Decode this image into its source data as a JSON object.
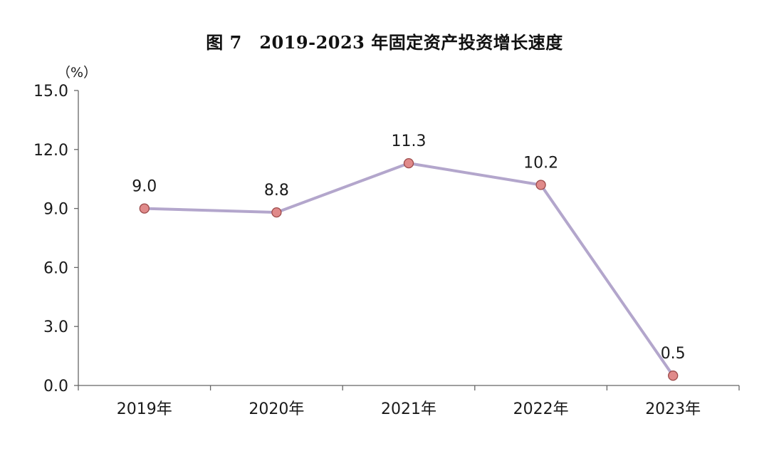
{
  "chart_data": {
    "type": "line",
    "title": "图 7　2019-2023 年固定资产投资增长速度",
    "ylabel": "（%）",
    "xlabel": "",
    "categories": [
      "2019年",
      "2020年",
      "2021年",
      "2022年",
      "2023年"
    ],
    "series": [
      {
        "values": [
          9.0,
          8.8,
          11.3,
          10.2,
          0.5
        ]
      }
    ],
    "data_labels": [
      "9.0",
      "8.8",
      "11.3",
      "10.2",
      "0.5"
    ],
    "ylim": [
      0,
      15
    ],
    "yticks": [
      0,
      3,
      6,
      9,
      12,
      15
    ],
    "ytick_labels": [
      "0.0",
      "3.0",
      "6.0",
      "9.0",
      "12.0",
      "15.0"
    ],
    "grid": false,
    "legend": "none",
    "line_color": "#b3a6cc",
    "marker_fill": "#e08a8a",
    "marker_stroke": "#9c4a4a",
    "axis_color": "#666666"
  }
}
